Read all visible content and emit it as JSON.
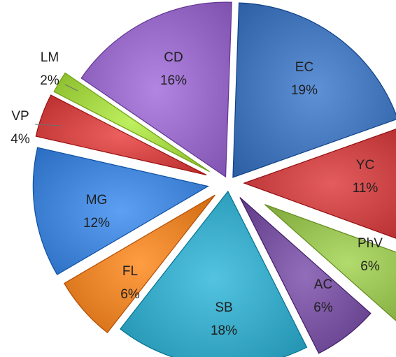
{
  "chart_data": {
    "type": "pie",
    "variant": "exploded-3d",
    "legend": "none",
    "slices": [
      {
        "label": "EC",
        "pct_label": "19%",
        "value": 19,
        "color": "#3c6eb4"
      },
      {
        "label": "YC",
        "pct_label": "11%",
        "value": 11,
        "color": "#c0393b"
      },
      {
        "label": "PhV",
        "pct_label": "6%",
        "value": 6,
        "color": "#8fb84a"
      },
      {
        "label": "AC",
        "pct_label": "6%",
        "value": 6,
        "color": "#6f4a96"
      },
      {
        "label": "SB",
        "pct_label": "18%",
        "value": 18,
        "color": "#2fa0bd"
      },
      {
        "label": "FL",
        "pct_label": "6%",
        "value": 6,
        "color": "#e07a20"
      },
      {
        "label": "MG",
        "pct_label": "12%",
        "value": 12,
        "color": "#3a7dd0"
      },
      {
        "label": "VP",
        "pct_label": "4%",
        "value": 4,
        "color": "#c93c3c"
      },
      {
        "label": "LM",
        "pct_label": "2%",
        "value": 2,
        "color": "#9acc3c"
      },
      {
        "label": "CD",
        "pct_label": "16%",
        "value": 16,
        "color": "#8e62be"
      }
    ]
  }
}
